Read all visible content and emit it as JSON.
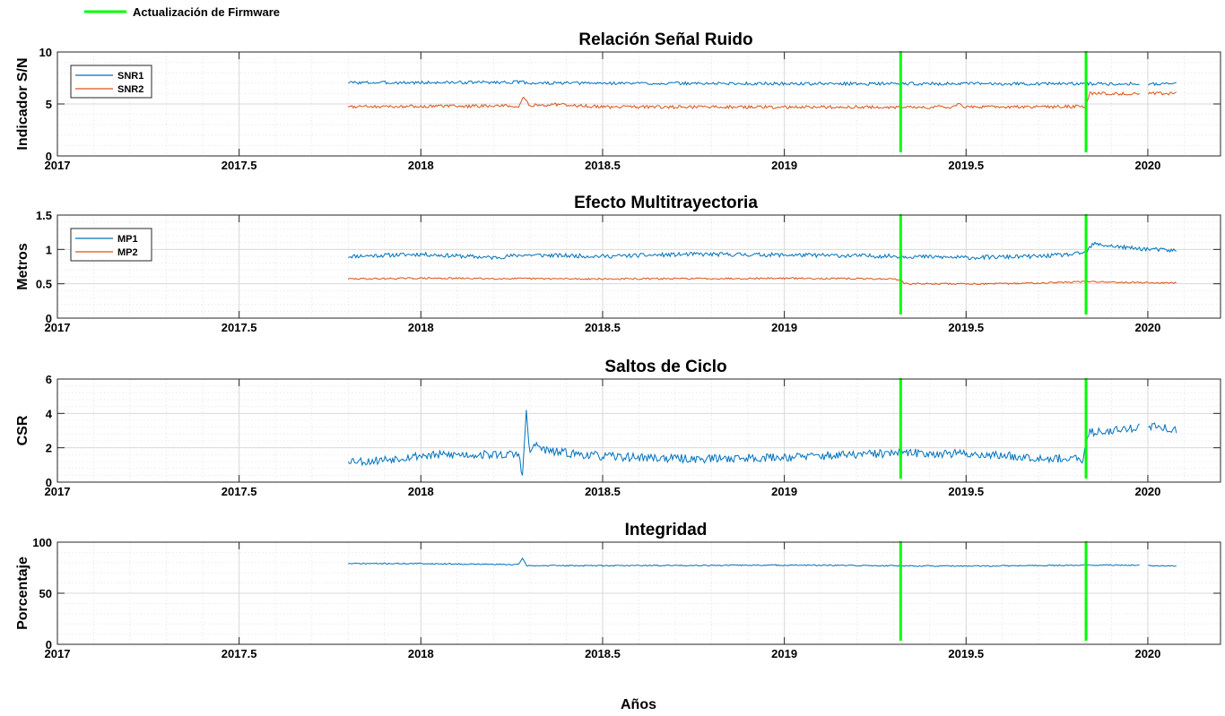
{
  "figure": {
    "top_legend": {
      "label": "Actualización de Firmware",
      "color": "#00ff00"
    },
    "xlabel": "Años"
  },
  "colors": {
    "series1": "#0072bd",
    "series2": "#d95319",
    "firmware": "#00ff00",
    "grid": "#d9d9d9"
  },
  "chart_data": [
    {
      "type": "line",
      "title": "Relación Señal Ruido",
      "ylabel": "Indicador S/N",
      "xlim": [
        2017,
        2020.2
      ],
      "ylim": [
        0,
        10
      ],
      "xticks": [
        2017,
        2017.5,
        2018,
        2018.5,
        2019,
        2019.5,
        2020
      ],
      "xtick_labels": [
        "2017",
        "2017.5",
        "2018",
        "2018.5",
        "2019",
        "2019.5",
        "2020"
      ],
      "yticks": [
        0,
        5,
        10
      ],
      "ytick_labels": [
        "0",
        "5",
        "10"
      ],
      "legend_position": "top-left",
      "grid": true,
      "vlines": [
        2019.32,
        2019.83
      ],
      "series": [
        {
          "name": "SNR1",
          "x": [
            2017.8,
            2018.0,
            2018.28,
            2018.3,
            2018.5,
            2019.0,
            2019.32,
            2019.5,
            2019.83,
            2019.98,
            2020.0,
            2020.08
          ],
          "y": [
            7.05,
            7.05,
            7.1,
            7.0,
            7.0,
            6.95,
            6.95,
            6.95,
            6.95,
            6.95,
            6.95,
            6.95
          ],
          "gaps_after": [
            2019.98
          ]
        },
        {
          "name": "SNR2",
          "x": [
            2017.8,
            2018.27,
            2018.28,
            2018.29,
            2018.3,
            2018.33,
            2018.34,
            2018.35,
            2018.5,
            2019.0,
            2019.47,
            2019.48,
            2019.49,
            2019.83,
            2019.84,
            2019.98,
            2020.0,
            2020.08
          ],
          "y": [
            4.75,
            4.8,
            5.6,
            5.5,
            4.75,
            5.0,
            4.75,
            5.0,
            4.7,
            4.7,
            4.7,
            5.0,
            4.7,
            4.75,
            6.0,
            6.0,
            6.0,
            6.0
          ],
          "gaps_after": [
            2019.98
          ]
        }
      ]
    },
    {
      "type": "line",
      "title": "Efecto Multitrayectoria",
      "ylabel": "Metros",
      "xlim": [
        2017,
        2020.2
      ],
      "ylim": [
        0,
        1.5
      ],
      "xticks": [
        2017,
        2017.5,
        2018,
        2018.5,
        2019,
        2019.5,
        2020
      ],
      "xtick_labels": [
        "2017",
        "2017.5",
        "2018",
        "2018.5",
        "2019",
        "2019.5",
        "2020"
      ],
      "yticks": [
        0,
        0.5,
        1,
        1.5
      ],
      "ytick_labels": [
        "0",
        "0.5",
        "1",
        "1.5"
      ],
      "legend_position": "top-left",
      "grid": true,
      "vlines": [
        2019.32,
        2019.83
      ],
      "series": [
        {
          "name": "MP1",
          "x": [
            2017.8,
            2018.0,
            2018.2,
            2018.28,
            2018.5,
            2018.75,
            2019.0,
            2019.32,
            2019.5,
            2019.7,
            2019.8,
            2019.83,
            2019.85,
            2019.95,
            2020.08
          ],
          "y": [
            0.9,
            0.93,
            0.88,
            0.92,
            0.9,
            0.93,
            0.92,
            0.9,
            0.88,
            0.9,
            0.93,
            0.96,
            1.08,
            1.02,
            0.98
          ],
          "noise": 0.03,
          "seed": 11
        },
        {
          "name": "MP2",
          "x": [
            2017.8,
            2018.0,
            2018.5,
            2019.0,
            2019.3,
            2019.32,
            2019.33,
            2019.6,
            2019.83,
            2019.85,
            2020.08
          ],
          "y": [
            0.57,
            0.58,
            0.57,
            0.58,
            0.57,
            0.56,
            0.5,
            0.5,
            0.53,
            0.53,
            0.51
          ],
          "noise": 0.012,
          "seed": 29
        }
      ]
    },
    {
      "type": "line",
      "title": "Saltos de Ciclo",
      "ylabel": "CSR",
      "xlim": [
        2017,
        2020.2
      ],
      "ylim": [
        0,
        6
      ],
      "xticks": [
        2017,
        2017.5,
        2018,
        2018.5,
        2019,
        2019.5,
        2020
      ],
      "xtick_labels": [
        "2017",
        "2017.5",
        "2018",
        "2018.5",
        "2019",
        "2019.5",
        "2020"
      ],
      "yticks": [
        0,
        2,
        4,
        6
      ],
      "ytick_labels": [
        "0",
        "2",
        "4",
        "6"
      ],
      "grid": true,
      "vlines": [
        2019.32,
        2019.83
      ],
      "series": [
        {
          "name": "",
          "x": [
            2017.8,
            2017.85,
            2018.0,
            2018.1,
            2018.27,
            2018.28,
            2018.29,
            2018.3,
            2018.31,
            2018.35,
            2018.5,
            2018.75,
            2019.0,
            2019.2,
            2019.32,
            2019.5,
            2019.82,
            2019.84,
            2019.9,
            2019.97,
            2020.0,
            2020.08
          ],
          "y": [
            1.3,
            1.2,
            1.55,
            1.6,
            1.6,
            0.3,
            4.2,
            1.5,
            2.2,
            1.8,
            1.5,
            1.35,
            1.45,
            1.6,
            1.7,
            1.65,
            1.3,
            2.9,
            3.0,
            3.2,
            3.3,
            3.0
          ],
          "noise": 0.25,
          "seed": 53,
          "gaps_after": [
            2019.98
          ]
        }
      ]
    },
    {
      "type": "line",
      "title": "Integridad",
      "ylabel": "Porcentaje",
      "xlim": [
        2017,
        2020.2
      ],
      "ylim": [
        0,
        100
      ],
      "xticks": [
        2017,
        2017.5,
        2018,
        2018.5,
        2019,
        2019.5,
        2020
      ],
      "xtick_labels": [
        "2017",
        "2017.5",
        "2018",
        "2018.5",
        "2019",
        "2019.5",
        "2020"
      ],
      "yticks": [
        0,
        50,
        100
      ],
      "ytick_labels": [
        "0",
        "50",
        "100"
      ],
      "grid": true,
      "vlines": [
        2019.32,
        2019.83
      ],
      "series": [
        {
          "name": "",
          "x": [
            2017.8,
            2018.0,
            2018.27,
            2018.28,
            2018.29,
            2018.5,
            2019.0,
            2019.5,
            2019.83,
            2019.98,
            2020.0,
            2020.08
          ],
          "y": [
            79,
            79,
            78,
            85,
            77,
            77,
            77.5,
            76.5,
            77.5,
            77.5,
            77,
            76.5
          ],
          "noise": 0.6,
          "seed": 71,
          "gaps_after": [
            2019.98
          ]
        }
      ]
    }
  ]
}
